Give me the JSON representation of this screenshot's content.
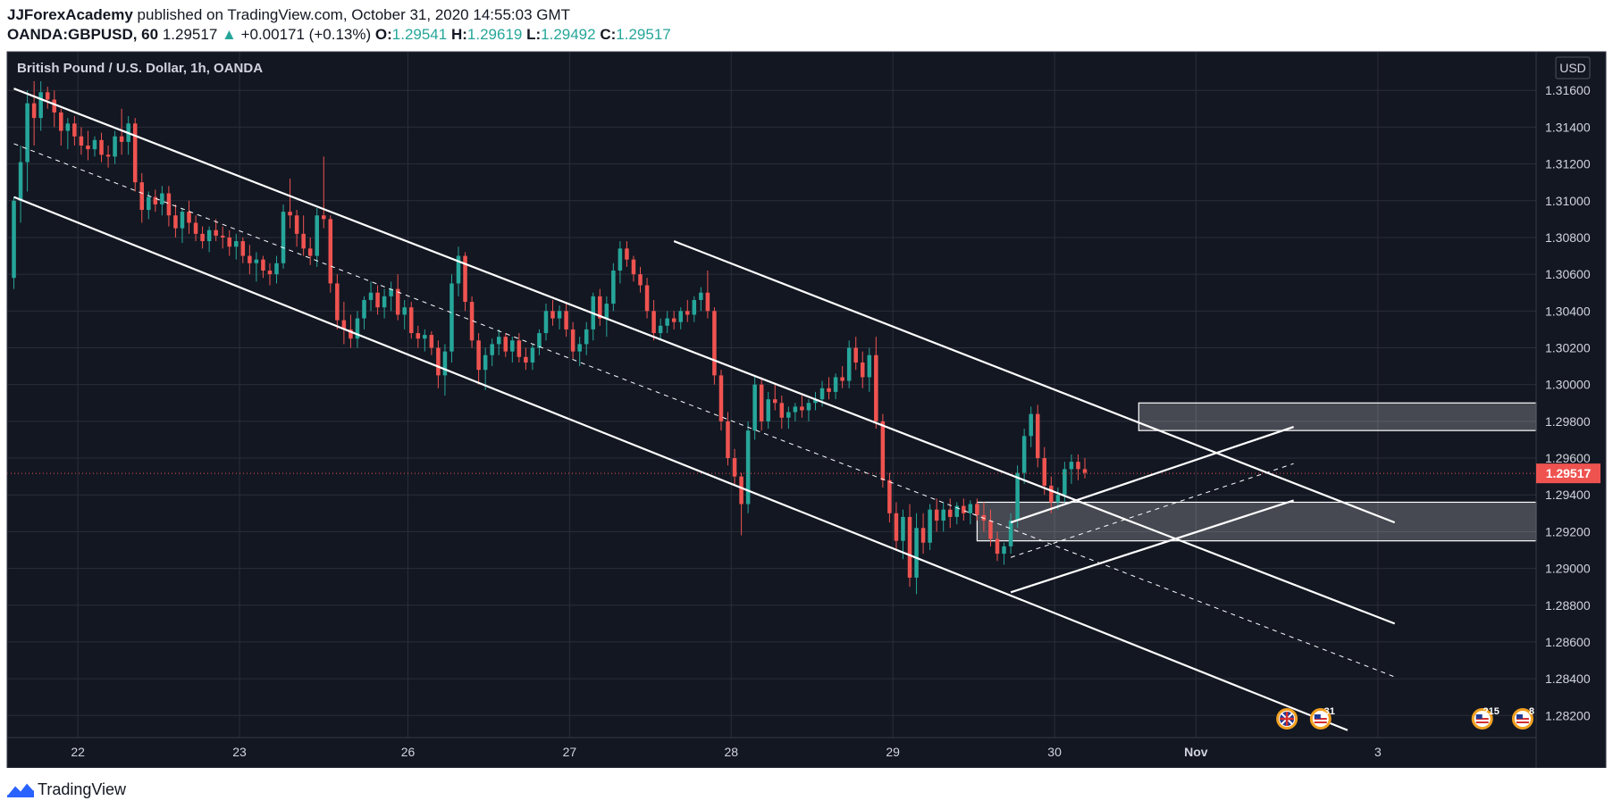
{
  "header": {
    "author": "JJForexAcademy",
    "published": "published on TradingView.com, October 31, 2020 14:55:03 GMT",
    "symbol": "OANDA:GBPUSD, 60",
    "last": "1.29517",
    "change": "+0.00171 (+0.13%)",
    "o_label": "O:",
    "o_val": "1.29541",
    "h_label": "H:",
    "h_val": "1.29619",
    "l_label": "L:",
    "l_val": "1.29492",
    "c_label": "C:",
    "c_val": "1.29517"
  },
  "footer": {
    "brand": "TradingView"
  },
  "colors": {
    "background": "#131722",
    "grid": "#2a2e39",
    "up": "#26a69a",
    "down": "#ef5350",
    "drawing": "#ffffff",
    "price_badge": "#ef5350"
  },
  "chart_data": {
    "type": "candlestick",
    "title": "British Pound / U.S. Dollar, 1h, OANDA",
    "currency": "USD",
    "current_price": 1.29517,
    "y_ticks": [
      1.316,
      1.314,
      1.312,
      1.31,
      1.308,
      1.306,
      1.304,
      1.302,
      1.3,
      1.298,
      1.296,
      1.294,
      1.292,
      1.29,
      1.288,
      1.286,
      1.284,
      1.282
    ],
    "y_range": [
      1.2808,
      1.3181
    ],
    "x_ticks": [
      {
        "label": "22",
        "t": 9.5
      },
      {
        "label": "23",
        "t": 33.5
      },
      {
        "label": "26",
        "t": 58.5
      },
      {
        "label": "27",
        "t": 82.5
      },
      {
        "label": "28",
        "t": 106.5
      },
      {
        "label": "29",
        "t": 130.5
      },
      {
        "label": "30",
        "t": 154.5
      },
      {
        "label": "Nov",
        "t": 175.5
      },
      {
        "label": "3",
        "t": 202.5
      }
    ],
    "x_range": [
      -1,
      226
    ],
    "candles": [
      [
        1.3058,
        1.3102,
        1.3052,
        1.31
      ],
      [
        1.31,
        1.313,
        1.3088,
        1.3121
      ],
      [
        1.3121,
        1.316,
        1.3105,
        1.3153
      ],
      [
        1.3153,
        1.3165,
        1.313,
        1.3145
      ],
      [
        1.3145,
        1.3165,
        1.3138,
        1.3159
      ],
      [
        1.3159,
        1.3162,
        1.315,
        1.3155
      ],
      [
        1.3155,
        1.316,
        1.314,
        1.3148
      ],
      [
        1.3148,
        1.315,
        1.313,
        1.3138
      ],
      [
        1.3138,
        1.3145,
        1.3128,
        1.3142
      ],
      [
        1.3142,
        1.3146,
        1.313,
        1.3135
      ],
      [
        1.3135,
        1.314,
        1.3125,
        1.313
      ],
      [
        1.313,
        1.3138,
        1.3122,
        1.3128
      ],
      [
        1.3128,
        1.3135,
        1.3124,
        1.3133
      ],
      [
        1.3133,
        1.3137,
        1.3121,
        1.3125
      ],
      [
        1.3125,
        1.313,
        1.3118,
        1.3124
      ],
      [
        1.3124,
        1.3138,
        1.312,
        1.3135
      ],
      [
        1.3135,
        1.315,
        1.3125,
        1.3132
      ],
      [
        1.3132,
        1.3146,
        1.3125,
        1.3142
      ],
      [
        1.3142,
        1.3145,
        1.3105,
        1.311
      ],
      [
        1.311,
        1.3115,
        1.3088,
        1.3095
      ],
      [
        1.3095,
        1.3105,
        1.309,
        1.3102
      ],
      [
        1.3102,
        1.3106,
        1.3094,
        1.3098
      ],
      [
        1.3098,
        1.3108,
        1.3092,
        1.3104
      ],
      [
        1.3104,
        1.3108,
        1.3086,
        1.3092
      ],
      [
        1.3092,
        1.3098,
        1.308,
        1.3085
      ],
      [
        1.3085,
        1.3096,
        1.3077,
        1.3094
      ],
      [
        1.3094,
        1.31,
        1.3082,
        1.3088
      ],
      [
        1.3088,
        1.3092,
        1.3078,
        1.3082
      ],
      [
        1.3082,
        1.3086,
        1.3074,
        1.3078
      ],
      [
        1.3078,
        1.3086,
        1.3072,
        1.3084
      ],
      [
        1.3084,
        1.309,
        1.3078,
        1.3081
      ],
      [
        1.3081,
        1.3086,
        1.3074,
        1.308
      ],
      [
        1.308,
        1.3084,
        1.307,
        1.3075
      ],
      [
        1.3075,
        1.3082,
        1.3068,
        1.3078
      ],
      [
        1.3078,
        1.308,
        1.3066,
        1.307
      ],
      [
        1.307,
        1.3076,
        1.306,
        1.3066
      ],
      [
        1.3066,
        1.3072,
        1.3056,
        1.3068
      ],
      [
        1.3068,
        1.307,
        1.3058,
        1.3062
      ],
      [
        1.3062,
        1.3066,
        1.3054,
        1.306
      ],
      [
        1.306,
        1.307,
        1.3055,
        1.3066
      ],
      [
        1.3066,
        1.3098,
        1.3063,
        1.3094
      ],
      [
        1.3094,
        1.3112,
        1.3085,
        1.3092
      ],
      [
        1.3092,
        1.3095,
        1.3075,
        1.3082
      ],
      [
        1.3082,
        1.3092,
        1.307,
        1.3074
      ],
      [
        1.3074,
        1.308,
        1.3065,
        1.307
      ],
      [
        1.307,
        1.3096,
        1.3064,
        1.3092
      ],
      [
        1.3092,
        1.3124,
        1.3085,
        1.309
      ],
      [
        1.309,
        1.3092,
        1.305,
        1.3055
      ],
      [
        1.3055,
        1.306,
        1.303,
        1.3035
      ],
      [
        1.3035,
        1.3045,
        1.3022,
        1.303
      ],
      [
        1.303,
        1.3038,
        1.302,
        1.3025
      ],
      [
        1.3025,
        1.304,
        1.302,
        1.3036
      ],
      [
        1.3036,
        1.3048,
        1.303,
        1.3046
      ],
      [
        1.3046,
        1.3056,
        1.304,
        1.305
      ],
      [
        1.305,
        1.3054,
        1.3038,
        1.3042
      ],
      [
        1.3042,
        1.3052,
        1.3036,
        1.3048
      ],
      [
        1.3048,
        1.3056,
        1.304,
        1.3052
      ],
      [
        1.3052,
        1.306,
        1.3035,
        1.3038
      ],
      [
        1.3038,
        1.3046,
        1.303,
        1.3042
      ],
      [
        1.3042,
        1.3045,
        1.3025,
        1.3028
      ],
      [
        1.3028,
        1.3032,
        1.302,
        1.3025
      ],
      [
        1.3025,
        1.303,
        1.3018,
        1.3027
      ],
      [
        1.3027,
        1.3029,
        1.3016,
        1.302
      ],
      [
        1.302,
        1.3024,
        1.2998,
        1.3005
      ],
      [
        1.3005,
        1.3022,
        1.2994,
        1.3018
      ],
      [
        1.3018,
        1.306,
        1.3012,
        1.3055
      ],
      [
        1.3055,
        1.3075,
        1.3048,
        1.307
      ],
      [
        1.307,
        1.3072,
        1.304,
        1.3045
      ],
      [
        1.3045,
        1.3048,
        1.302,
        1.3024
      ],
      [
        1.3024,
        1.3028,
        1.3,
        1.3008
      ],
      [
        1.3008,
        1.302,
        1.2997,
        1.3016
      ],
      [
        1.3016,
        1.3025,
        1.301,
        1.3022
      ],
      [
        1.3022,
        1.303,
        1.3016,
        1.3026
      ],
      [
        1.3026,
        1.3028,
        1.3015,
        1.3018
      ],
      [
        1.3018,
        1.3026,
        1.3012,
        1.3024
      ],
      [
        1.3024,
        1.3028,
        1.3012,
        1.3015
      ],
      [
        1.3015,
        1.302,
        1.3008,
        1.3012
      ],
      [
        1.3012,
        1.3022,
        1.3008,
        1.302
      ],
      [
        1.302,
        1.303,
        1.3016,
        1.3028
      ],
      [
        1.3028,
        1.3044,
        1.3024,
        1.304
      ],
      [
        1.304,
        1.3046,
        1.3032,
        1.3036
      ],
      [
        1.3036,
        1.3043,
        1.303,
        1.304
      ],
      [
        1.304,
        1.3044,
        1.3026,
        1.303
      ],
      [
        1.303,
        1.3034,
        1.3014,
        1.3018
      ],
      [
        1.3018,
        1.3026,
        1.301,
        1.3022
      ],
      [
        1.3022,
        1.3034,
        1.3016,
        1.303
      ],
      [
        1.303,
        1.305,
        1.3024,
        1.3048
      ],
      [
        1.3048,
        1.3052,
        1.3032,
        1.3036
      ],
      [
        1.3036,
        1.3048,
        1.3026,
        1.3044
      ],
      [
        1.3044,
        1.3066,
        1.304,
        1.3062
      ],
      [
        1.3062,
        1.3078,
        1.3055,
        1.3074
      ],
      [
        1.3074,
        1.3078,
        1.3064,
        1.3068
      ],
      [
        1.3068,
        1.307,
        1.3056,
        1.306
      ],
      [
        1.306,
        1.3064,
        1.305,
        1.3054
      ],
      [
        1.3054,
        1.3058,
        1.3036,
        1.304
      ],
      [
        1.304,
        1.3046,
        1.3024,
        1.3028
      ],
      [
        1.3028,
        1.3036,
        1.3024,
        1.3032
      ],
      [
        1.3032,
        1.304,
        1.3028,
        1.3036
      ],
      [
        1.3036,
        1.304,
        1.303,
        1.3034
      ],
      [
        1.3034,
        1.3042,
        1.303,
        1.304
      ],
      [
        1.304,
        1.3046,
        1.3034,
        1.3038
      ],
      [
        1.3038,
        1.3048,
        1.3034,
        1.3046
      ],
      [
        1.3046,
        1.3053,
        1.304,
        1.305
      ],
      [
        1.305,
        1.3062,
        1.3036,
        1.304
      ],
      [
        1.304,
        1.3042,
        1.3,
        1.3005
      ],
      [
        1.3005,
        1.3008,
        1.2975,
        1.298
      ],
      [
        1.298,
        1.2985,
        1.2956,
        1.296
      ],
      [
        1.296,
        1.2965,
        1.2945,
        1.295
      ],
      [
        1.295,
        1.2952,
        1.2918,
        1.2935
      ],
      [
        1.2935,
        1.298,
        1.293,
        1.2975
      ],
      [
        1.2975,
        1.3005,
        1.297,
        1.3
      ],
      [
        1.3,
        1.3004,
        1.2975,
        1.298
      ],
      [
        1.298,
        1.2996,
        1.2976,
        1.2992
      ],
      [
        1.2992,
        1.3,
        1.2986,
        1.299
      ],
      [
        1.299,
        1.2994,
        1.2976,
        1.2982
      ],
      [
        1.2982,
        1.2988,
        1.2976,
        1.2985
      ],
      [
        1.2985,
        1.299,
        1.298,
        1.2988
      ],
      [
        1.2988,
        1.2994,
        1.2982,
        1.2986
      ],
      [
        1.2986,
        1.2992,
        1.298,
        1.299
      ],
      [
        1.299,
        1.2996,
        1.2986,
        1.2992
      ],
      [
        1.2992,
        1.3002,
        1.2988,
        1.2998
      ],
      [
        1.2998,
        1.3004,
        1.2992,
        1.2996
      ],
      [
        1.2996,
        1.3006,
        1.2992,
        1.3004
      ],
      [
        1.3004,
        1.301,
        1.2998,
        1.3002
      ],
      [
        1.3002,
        1.3024,
        1.2998,
        1.302
      ],
      [
        1.302,
        1.3026,
        1.3008,
        1.3012
      ],
      [
        1.3012,
        1.3018,
        1.2998,
        1.3004
      ],
      [
        1.3004,
        1.302,
        1.2996,
        1.3016
      ],
      [
        1.3016,
        1.3026,
        1.2976,
        1.298
      ],
      [
        1.298,
        1.2984,
        1.2944,
        1.2948
      ],
      [
        1.2948,
        1.2952,
        1.2925,
        1.293
      ],
      [
        1.293,
        1.2936,
        1.291,
        1.2915
      ],
      [
        1.2915,
        1.2932,
        1.2905,
        1.2928
      ],
      [
        1.2928,
        1.2935,
        1.289,
        1.2895
      ],
      [
        1.2895,
        1.293,
        1.2886,
        1.2922
      ],
      [
        1.2922,
        1.293,
        1.2908,
        1.2914
      ],
      [
        1.2914,
        1.2935,
        1.291,
        1.2932
      ],
      [
        1.2932,
        1.2938,
        1.292,
        1.2926
      ],
      [
        1.2926,
        1.2936,
        1.292,
        1.2932
      ],
      [
        1.2932,
        1.2938,
        1.2922,
        1.2928
      ],
      [
        1.2928,
        1.2936,
        1.2924,
        1.2934
      ],
      [
        1.2934,
        1.2938,
        1.2926,
        1.293
      ],
      [
        1.293,
        1.2937,
        1.2924,
        1.2935
      ],
      [
        1.2935,
        1.2938,
        1.2926,
        1.2929
      ],
      [
        1.2929,
        1.2936,
        1.292,
        1.2926
      ],
      [
        1.2926,
        1.2932,
        1.2912,
        1.2916
      ],
      [
        1.2916,
        1.292,
        1.2904,
        1.2908
      ],
      [
        1.2908,
        1.2914,
        1.2902,
        1.2912
      ],
      [
        1.2912,
        1.293,
        1.2908,
        1.2926
      ],
      [
        1.2926,
        1.2956,
        1.2922,
        1.2952
      ],
      [
        1.2952,
        1.2976,
        1.2946,
        1.2972
      ],
      [
        1.2972,
        1.2988,
        1.2966,
        1.2984
      ],
      [
        1.2984,
        1.2989,
        1.2955,
        1.296
      ],
      [
        1.296,
        1.2966,
        1.294,
        1.2945
      ],
      [
        1.2945,
        1.295,
        1.293,
        1.2936
      ],
      [
        1.2936,
        1.2944,
        1.2932,
        1.294
      ],
      [
        1.294,
        1.2958,
        1.2936,
        1.2954
      ],
      [
        1.2954,
        1.2962,
        1.2946,
        1.2958
      ],
      [
        1.2958,
        1.2962,
        1.2948,
        1.2954
      ],
      [
        1.2954,
        1.296,
        1.2949,
        1.2952
      ]
    ],
    "horizontal_line": 1.29517,
    "trendlines": [
      {
        "t1": 0,
        "p1": 1.3161,
        "t2": 47,
        "p2": 1.3094,
        "style": "solid"
      },
      {
        "t1": 47,
        "p1": 1.3094,
        "t2": 205,
        "p2": 1.287,
        "style": "solid"
      },
      {
        "t1": 0,
        "p1": 1.3102,
        "t2": 198,
        "p2": 1.2812,
        "style": "solid"
      },
      {
        "t1": 0,
        "p1": 1.3131,
        "t2": 205,
        "p2": 1.2841,
        "style": "dashed"
      },
      {
        "t1": 98,
        "p1": 1.3078,
        "t2": 205,
        "p2": 1.2925,
        "style": "solid"
      },
      {
        "t1": 148,
        "p1": 1.2925,
        "t2": 190,
        "p2": 1.2977,
        "style": "solid"
      },
      {
        "t1": 148,
        "p1": 1.2887,
        "t2": 190,
        "p2": 1.2937,
        "style": "solid"
      },
      {
        "t1": 148,
        "p1": 1.2906,
        "t2": 190,
        "p2": 1.2957,
        "style": "dashed"
      }
    ],
    "zones": [
      {
        "t_start": 167,
        "p_low": 1.2975,
        "p_high": 1.299
      },
      {
        "t_start": 143,
        "p_low": 1.2915,
        "p_high": 1.2936
      }
    ],
    "event_icons": [
      {
        "t": 189,
        "kind": "uk-flag-icon",
        "count": ""
      },
      {
        "t": 194,
        "kind": "us-flag-icon",
        "count": "31"
      },
      {
        "t": 218,
        "kind": "us-flag-icon",
        "count": "215"
      },
      {
        "t": 224,
        "kind": "us-flag-icon",
        "count": "8"
      }
    ]
  }
}
